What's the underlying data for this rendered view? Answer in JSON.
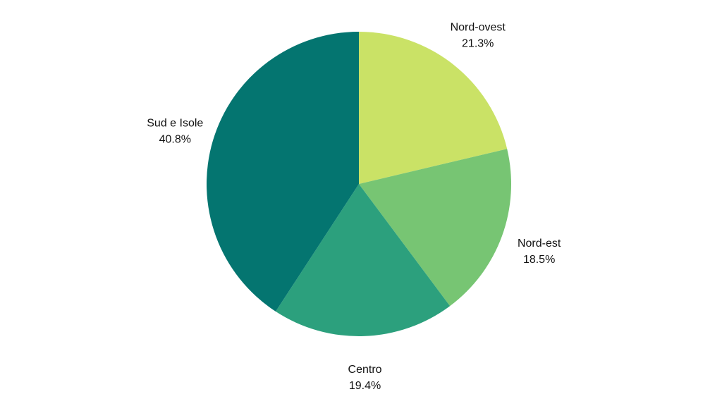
{
  "chart_data": {
    "type": "pie",
    "title": "",
    "slices": [
      {
        "label": "Nord-ovest",
        "value": 21.3,
        "value_label": "21.3%",
        "color": "#cae266"
      },
      {
        "label": "Nord-est",
        "value": 18.5,
        "value_label": "18.5%",
        "color": "#77c573"
      },
      {
        "label": "Centro",
        "value": 19.4,
        "value_label": "19.4%",
        "color": "#2ca07d"
      },
      {
        "label": "Sud e Isole",
        "value": 40.8,
        "value_label": "40.8%",
        "color": "#047570"
      }
    ],
    "start_angle": "12 o'clock",
    "direction": "clockwise",
    "legend": "none",
    "labels_placement": "outside"
  }
}
